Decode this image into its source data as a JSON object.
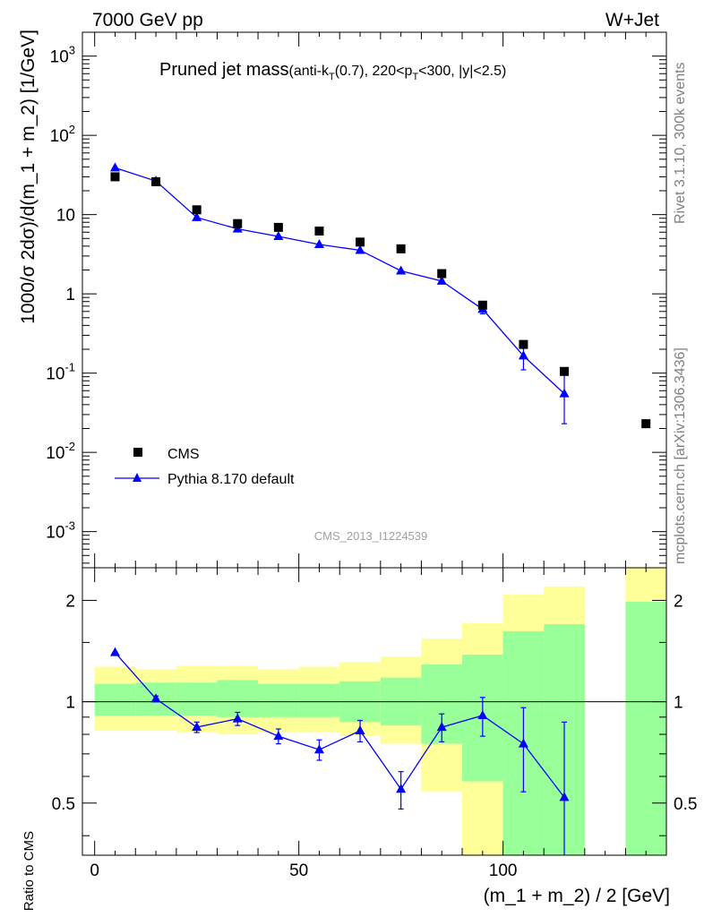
{
  "header": {
    "energy_label": "7000 GeV pp",
    "process_label": "W+Jet",
    "side_label_top": "Rivet 3.1.10,  300k events",
    "side_label_bottom": "mcplots.cern.ch [arXiv:1306.3436]",
    "watermark": "CMS_2013_I1224539"
  },
  "main_plot": {
    "title_main": "Pruned jet mass",
    "title_sub_a": "(anti-k",
    "title_sub_a_subscript": "T",
    "title_sub_b": "(0.7), 220<p",
    "title_sub_b_subscript": "T",
    "title_sub_c": "<300, |y|<2.5)",
    "ylabel": "1000/σ 2dσ)/d(m_1 + m_2) [1/GeV]",
    "y_ticks": [
      {
        "value": 0.001,
        "base": "10",
        "exp": "-3"
      },
      {
        "value": 0.01,
        "base": "10",
        "exp": "-2"
      },
      {
        "value": 0.1,
        "base": "10",
        "exp": "-1"
      },
      {
        "value": 1,
        "base": "1",
        "exp": ""
      },
      {
        "value": 10,
        "base": "10",
        "exp": ""
      },
      {
        "value": 100,
        "base": "10",
        "exp": "2"
      },
      {
        "value": 1000,
        "base": "10",
        "exp": "3"
      }
    ]
  },
  "ratio_plot": {
    "ylabel": "Ratio to CMS",
    "y_ticks": [
      {
        "value": 0.5,
        "label": "0.5"
      },
      {
        "value": 1,
        "label": "1"
      },
      {
        "value": 2,
        "label": "2"
      }
    ]
  },
  "x_axis": {
    "label": "(m_1 + m_2) / 2 [GeV]",
    "ticks": [
      {
        "value": 0,
        "label": "0"
      },
      {
        "value": 50,
        "label": "50"
      },
      {
        "value": 100,
        "label": "100"
      }
    ]
  },
  "legend": {
    "placement": "lower-left",
    "cms_label": "CMS",
    "pythia_label": "Pythia 8.170 default"
  },
  "colors": {
    "cms_marker": "#000000",
    "pythia_line": "#0000ff",
    "band_inner": "#99ff99",
    "band_outer": "#ffff99"
  },
  "chart_data": [
    {
      "type": "scatter",
      "scale": "log",
      "xlim": [
        -3,
        140
      ],
      "ylim": [
        0.00035,
        2000
      ],
      "series": [
        {
          "name": "CMS",
          "marker": "square",
          "x": [
            5,
            15,
            25,
            35,
            45,
            55,
            65,
            75,
            85,
            95,
            105,
            115,
            135
          ],
          "values": [
            30,
            26,
            11.5,
            7.7,
            6.9,
            6.2,
            4.5,
            3.7,
            1.8,
            0.72,
            0.23,
            0.105,
            0.023
          ]
        },
        {
          "name": "Pythia 8.170 default",
          "marker": "triangle",
          "x": [
            5,
            15,
            25,
            35,
            45,
            55,
            65,
            75,
            85,
            95,
            105,
            115
          ],
          "values": [
            39,
            26.5,
            9.2,
            6.6,
            5.3,
            4.2,
            3.55,
            1.95,
            1.45,
            0.64,
            0.165,
            0.055
          ],
          "err_up": [
            0,
            0,
            0,
            0,
            0,
            0,
            0,
            0,
            0,
            0.08,
            0.06,
            0.045
          ],
          "err_down": [
            0,
            0,
            0,
            0,
            0,
            0,
            0,
            0,
            0,
            0.08,
            0.055,
            0.032
          ]
        }
      ]
    },
    {
      "type": "line",
      "scale": "log",
      "xlim": [
        -3,
        140
      ],
      "ylim": [
        0.35,
        2.5
      ],
      "reference_line": 1,
      "x": [
        5,
        15,
        25,
        35,
        45,
        55,
        65,
        75,
        85,
        95,
        105,
        115
      ],
      "values": [
        1.4,
        1.02,
        0.84,
        0.89,
        0.79,
        0.72,
        0.82,
        0.55,
        0.84,
        0.91,
        0.75,
        0.52
      ],
      "err_up": [
        0,
        0.02,
        0.03,
        0.04,
        0.04,
        0.05,
        0.06,
        0.07,
        0.08,
        0.12,
        0.21,
        0.35
      ],
      "err_down": [
        0,
        0.02,
        0.03,
        0.04,
        0.04,
        0.05,
        0.06,
        0.07,
        0.08,
        0.12,
        0.21,
        0.35
      ],
      "bands": {
        "bins": [
          [
            0,
            10
          ],
          [
            10,
            20
          ],
          [
            20,
            30
          ],
          [
            30,
            40
          ],
          [
            40,
            50
          ],
          [
            50,
            60
          ],
          [
            60,
            70
          ],
          [
            70,
            80
          ],
          [
            80,
            90
          ],
          [
            90,
            100
          ],
          [
            100,
            110
          ],
          [
            110,
            120
          ],
          [
            130,
            140
          ]
        ],
        "outer_low": [
          0.82,
          0.82,
          0.81,
          0.8,
          0.81,
          0.81,
          0.79,
          0.75,
          0.54,
          0.3,
          0.3,
          0.3,
          0.3
        ],
        "outer_high": [
          1.27,
          1.25,
          1.28,
          1.28,
          1.25,
          1.27,
          1.31,
          1.36,
          1.54,
          1.71,
          2.08,
          2.2,
          3.0
        ],
        "inner_low": [
          0.91,
          0.91,
          0.91,
          0.9,
          0.9,
          0.9,
          0.87,
          0.85,
          0.75,
          0.58,
          0.3,
          0.3,
          0.3
        ],
        "inner_high": [
          1.13,
          1.14,
          1.14,
          1.16,
          1.13,
          1.13,
          1.15,
          1.18,
          1.29,
          1.38,
          1.62,
          1.7,
          1.98
        ]
      }
    }
  ]
}
